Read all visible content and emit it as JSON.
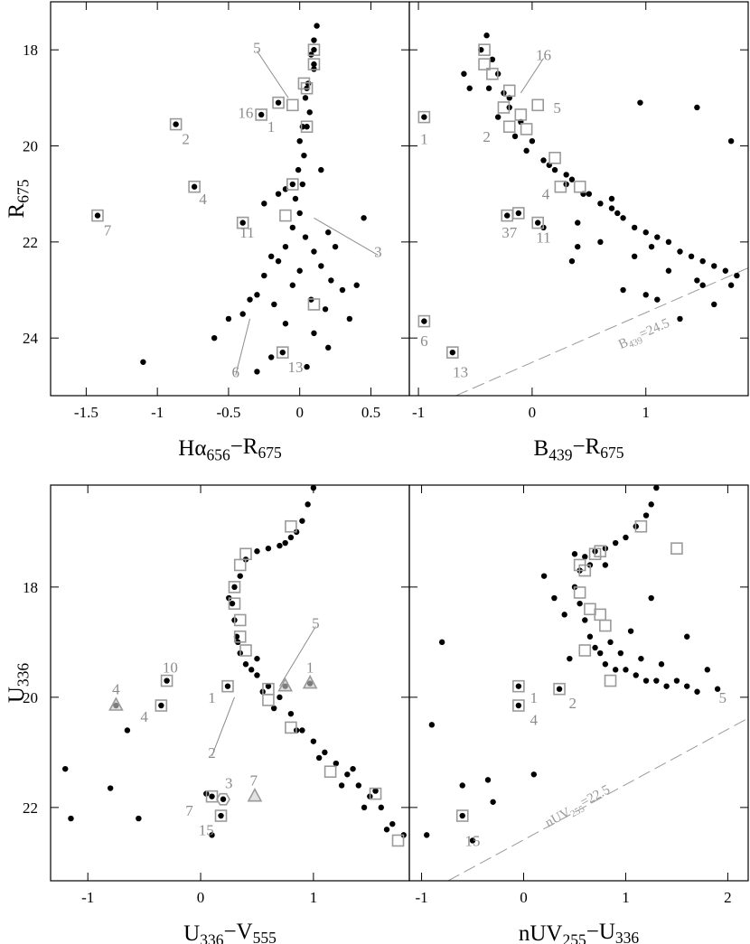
{
  "chart_data": [
    {
      "type": "scatter",
      "xlabel": [
        {
          "t": "Hα"
        },
        {
          "t": "656",
          "sub": true
        },
        {
          "t": "−R"
        },
        {
          "t": "675",
          "sub": true
        }
      ],
      "ylabel": [
        {
          "t": "R"
        },
        {
          "t": "675",
          "sub": true
        }
      ],
      "xlim": [
        -1.75,
        0.77
      ],
      "ylim": [
        17.0,
        25.2
      ],
      "y_inverted": true,
      "xticks": [
        -1.5,
        -1,
        -0.5,
        0,
        0.5
      ],
      "yticks": [
        18,
        20,
        22,
        24
      ],
      "series": [
        {
          "marker": "dot",
          "color": "#000000",
          "x": [
            0.12,
            0.1,
            0.08,
            0.1,
            0.06,
            0.04,
            0.07,
            0.02,
            0.0,
            0.03,
            -0.01,
            0.02,
            -0.03,
            0.0,
            -0.05,
            0.04,
            -0.1,
            0.1,
            -0.15,
            0.15,
            0.0,
            -0.25,
            0.22,
            -0.05,
            0.3,
            -0.3,
            0.08,
            -0.18,
            0.18,
            -0.4,
            0.35,
            -0.1,
            0.1,
            -0.35,
            0.4,
            -0.5,
            0.45,
            -0.15,
            0.2,
            -0.2,
            0.25,
            -0.6,
            -0.2,
            0.05,
            -1.1,
            -0.3,
            0.2,
            -0.25,
            0.15,
            -0.1,
            -0.27,
            -0.87,
            -0.74,
            -1.42,
            -0.4,
            -0.12,
            -0.15,
            0.1,
            0.1,
            0.05,
            0.05,
            -0.05
          ],
          "values": [
            17.5,
            17.8,
            18.1,
            18.4,
            18.7,
            19.0,
            19.3,
            19.6,
            19.9,
            20.2,
            20.5,
            20.8,
            21.1,
            21.4,
            21.7,
            21.9,
            22.1,
            22.2,
            22.4,
            22.5,
            22.6,
            22.7,
            22.8,
            22.9,
            23.0,
            23.1,
            23.2,
            23.3,
            23.4,
            23.5,
            23.6,
            23.7,
            23.9,
            23.2,
            22.9,
            23.6,
            21.5,
            21.0,
            21.8,
            22.3,
            22.1,
            24.0,
            24.4,
            24.6,
            24.5,
            24.7,
            24.2,
            21.2,
            20.5,
            20.9,
            19.35,
            19.55,
            20.85,
            21.45,
            21.6,
            24.3,
            19.1,
            18.0,
            18.3,
            18.8,
            19.6,
            20.8
          ]
        },
        {
          "marker": "square",
          "color": "#9a9a9a",
          "x": [
            -0.27,
            -0.87,
            -0.74,
            -1.42,
            -0.4,
            -0.12,
            -0.15,
            0.1,
            0.1,
            0.05,
            0.05,
            -0.05,
            -0.05,
            0.1,
            -0.1,
            0.03
          ],
          "values": [
            19.35,
            19.55,
            20.85,
            21.45,
            21.6,
            24.3,
            19.1,
            18.0,
            18.3,
            18.8,
            19.6,
            19.15,
            20.8,
            23.3,
            21.45,
            18.7
          ]
        }
      ],
      "annotations": [
        {
          "text": "5",
          "x": -0.3,
          "y": 17.95,
          "to": [
            -0.08,
            19.0
          ]
        },
        {
          "text": "16",
          "x": -0.38,
          "y": 19.3
        },
        {
          "text": "1",
          "x": -0.2,
          "y": 19.6
        },
        {
          "text": "2",
          "x": -0.8,
          "y": 19.85
        },
        {
          "text": "4",
          "x": -0.68,
          "y": 21.1
        },
        {
          "text": "7",
          "x": -1.35,
          "y": 21.75
        },
        {
          "text": "11",
          "x": -0.37,
          "y": 21.8
        },
        {
          "text": "3",
          "x": 0.55,
          "y": 22.2,
          "to": [
            0.1,
            21.5
          ]
        },
        {
          "text": "6",
          "x": -0.45,
          "y": 24.7,
          "to": [
            -0.35,
            23.6
          ]
        },
        {
          "text": "13",
          "x": -0.03,
          "y": 24.6
        }
      ]
    },
    {
      "type": "scatter",
      "xlabel": [
        {
          "t": "B"
        },
        {
          "t": "439",
          "sub": true
        },
        {
          "t": "−R"
        },
        {
          "t": "675",
          "sub": true
        }
      ],
      "xlim": [
        -1.08,
        1.9
      ],
      "ylim": [
        17.0,
        25.2
      ],
      "y_inverted": true,
      "xticks": [
        -1,
        0,
        1
      ],
      "yticks": [
        18,
        20,
        22,
        24
      ],
      "series": [
        {
          "marker": "dot",
          "color": "#000000",
          "x": [
            -0.4,
            -0.45,
            -0.35,
            -0.3,
            -0.38,
            -0.25,
            -0.2,
            -0.3,
            -0.1,
            -0.15,
            0.0,
            -0.05,
            0.1,
            0.15,
            0.2,
            0.3,
            0.35,
            0.45,
            0.5,
            0.6,
            0.7,
            0.8,
            0.75,
            0.9,
            1.0,
            1.1,
            1.05,
            1.2,
            1.3,
            1.4,
            1.5,
            1.6,
            1.7,
            1.8,
            0.9,
            1.2,
            1.5,
            0.6,
            1.0,
            0.4,
            -0.6,
            -0.55,
            -0.2,
            0.3,
            0.7,
            1.45,
            1.6,
            0.1,
            0.35,
            -0.95,
            -0.95,
            -0.7,
            -0.22,
            -0.12,
            0.05,
            0.4,
            0.8,
            1.1,
            1.3,
            1.75,
            0.95,
            1.45,
            1.75
          ],
          "values": [
            17.7,
            18.0,
            18.2,
            18.5,
            18.8,
            18.9,
            19.2,
            19.4,
            19.5,
            19.8,
            19.9,
            20.1,
            20.3,
            20.4,
            20.5,
            20.8,
            20.7,
            21.0,
            21.0,
            21.2,
            21.3,
            21.5,
            21.4,
            21.7,
            21.8,
            21.9,
            22.1,
            22.0,
            22.2,
            22.3,
            22.4,
            22.5,
            22.6,
            22.7,
            22.3,
            22.6,
            22.9,
            22.0,
            23.1,
            21.6,
            18.5,
            18.8,
            19.0,
            20.6,
            21.1,
            22.8,
            23.3,
            21.7,
            22.4,
            19.4,
            23.65,
            24.3,
            21.45,
            21.4,
            21.6,
            22.1,
            23.0,
            23.2,
            23.6,
            22.9,
            19.1,
            19.2,
            19.9
          ]
        },
        {
          "marker": "square",
          "color": "#9a9a9a",
          "x": [
            -0.42,
            -0.42,
            -0.35,
            -0.2,
            -0.25,
            -0.1,
            0.05,
            -0.05,
            -0.2,
            0.2,
            0.25,
            0.42,
            -0.22,
            -0.12,
            0.05,
            -0.95,
            -0.95,
            -0.7
          ],
          "values": [
            18.0,
            18.3,
            18.5,
            18.85,
            19.2,
            19.35,
            19.15,
            19.65,
            19.6,
            20.25,
            20.85,
            20.85,
            21.45,
            21.4,
            21.6,
            19.4,
            23.65,
            24.3
          ]
        }
      ],
      "annotations": [
        {
          "text": "16",
          "x": 0.1,
          "y": 18.1,
          "to": [
            -0.1,
            18.9
          ]
        },
        {
          "text": "5",
          "x": 0.22,
          "y": 19.2
        },
        {
          "text": "2",
          "x": -0.4,
          "y": 19.8
        },
        {
          "text": "1",
          "x": -0.95,
          "y": 19.85
        },
        {
          "text": "4",
          "x": 0.12,
          "y": 21.0
        },
        {
          "text": "37",
          "x": -0.2,
          "y": 21.8
        },
        {
          "text": "11",
          "x": 0.1,
          "y": 21.9
        },
        {
          "text": "6",
          "x": -0.95,
          "y": 24.05
        },
        {
          "text": "13",
          "x": -0.63,
          "y": 24.7
        }
      ],
      "limit_line": {
        "x": [
          -0.67,
          1.9
        ],
        "y": [
          25.2,
          22.54
        ],
        "label": [
          {
            "t": "B"
          },
          {
            "t": "439",
            "sub": true
          },
          {
            "t": "=24.5"
          }
        ],
        "label_x": 1.0,
        "label_y": 24.0
      }
    },
    {
      "type": "scatter",
      "xlabel": [
        {
          "t": "U"
        },
        {
          "t": "336",
          "sub": true
        },
        {
          "t": "−V"
        },
        {
          "t": "555",
          "sub": true
        }
      ],
      "ylabel": [
        {
          "t": "U"
        },
        {
          "t": "336",
          "sub": true
        }
      ],
      "xlim": [
        -1.33,
        1.85
      ],
      "ylim": [
        16.15,
        23.33
      ],
      "y_inverted": true,
      "xticks": [
        -1,
        0,
        1
      ],
      "yticks": [
        18,
        20,
        22
      ],
      "series": [
        {
          "marker": "dot",
          "color": "#000000",
          "x": [
            1.0,
            0.95,
            0.9,
            0.85,
            0.8,
            0.75,
            0.7,
            0.6,
            0.5,
            0.4,
            0.35,
            0.3,
            0.28,
            0.3,
            0.32,
            0.35,
            0.4,
            0.5,
            0.6,
            0.7,
            0.8,
            0.9,
            1.0,
            1.1,
            1.2,
            1.3,
            1.4,
            1.5,
            1.6,
            1.7,
            1.8,
            0.45,
            0.55,
            0.65,
            0.85,
            1.05,
            1.25,
            1.45,
            1.65,
            0.25,
            0.33,
            0.5,
            1.35,
            1.55,
            -0.75,
            -1.2,
            -1.15,
            -0.55,
            -0.8,
            -0.65,
            0.05,
            0.1,
            0.2,
            0.24,
            -0.3,
            -0.35,
            0.1,
            0.18,
            0.97,
            0.75
          ],
          "values": [
            16.2,
            16.5,
            16.8,
            17.0,
            17.1,
            17.2,
            17.25,
            17.3,
            17.35,
            17.5,
            17.8,
            18.0,
            18.3,
            18.6,
            18.9,
            19.2,
            19.4,
            19.6,
            19.8,
            20.0,
            20.3,
            20.6,
            20.8,
            21.0,
            21.2,
            21.4,
            21.6,
            21.8,
            22.0,
            22.3,
            22.5,
            19.5,
            19.9,
            20.2,
            20.6,
            21.1,
            21.6,
            22.0,
            22.4,
            18.2,
            19.0,
            19.3,
            21.3,
            21.7,
            20.15,
            21.3,
            22.2,
            22.2,
            21.65,
            20.6,
            21.75,
            22.5,
            21.85,
            19.8,
            19.7,
            20.15,
            21.8,
            22.15,
            19.75,
            19.8
          ]
        },
        {
          "marker": "square",
          "color": "#9a9a9a",
          "x": [
            0.8,
            0.4,
            0.35,
            0.3,
            0.3,
            0.35,
            0.35,
            0.4,
            0.6,
            0.6,
            0.8,
            1.15,
            1.55,
            1.75,
            0.24,
            -0.3,
            -0.35,
            0.1,
            0.18
          ],
          "values": [
            16.9,
            17.4,
            17.6,
            18.0,
            18.3,
            18.6,
            18.9,
            19.15,
            19.85,
            20.05,
            20.55,
            21.35,
            21.75,
            22.6,
            19.8,
            19.7,
            20.15,
            21.8,
            22.15
          ]
        },
        {
          "marker": "triangle",
          "color": "#9a9a9a",
          "x": [
            -0.75,
            0.97,
            0.48,
            0.75
          ],
          "values": [
            20.15,
            19.75,
            21.8,
            19.8
          ]
        },
        {
          "marker": "hexagon",
          "color": "#9a9a9a",
          "x": [
            0.2
          ],
          "values": [
            21.85
          ]
        }
      ],
      "annotations": [
        {
          "text": "5",
          "x": 1.02,
          "y": 18.65,
          "to": [
            0.7,
            19.8
          ]
        },
        {
          "text": "10",
          "x": -0.27,
          "y": 19.45
        },
        {
          "text": "1",
          "x": 0.1,
          "y": 20.0
        },
        {
          "text": "4",
          "x": -0.75,
          "y": 19.85
        },
        {
          "text": "4",
          "x": -0.5,
          "y": 20.35
        },
        {
          "text": "1",
          "x": 0.97,
          "y": 19.45
        },
        {
          "text": "2",
          "x": 0.1,
          "y": 21.0,
          "to": [
            0.3,
            20.0
          ]
        },
        {
          "text": "3",
          "x": 0.25,
          "y": 21.55
        },
        {
          "text": "7",
          "x": 0.47,
          "y": 21.5
        },
        {
          "text": "7",
          "x": -0.1,
          "y": 22.05
        },
        {
          "text": "15",
          "x": 0.05,
          "y": 22.4
        }
      ]
    },
    {
      "type": "scatter",
      "xlabel": [
        {
          "t": "nUV"
        },
        {
          "t": "255",
          "sub": true
        },
        {
          "t": "−U"
        },
        {
          "t": "336",
          "sub": true
        }
      ],
      "xlim": [
        -1.12,
        2.2
      ],
      "ylim": [
        16.15,
        23.33
      ],
      "y_inverted": true,
      "xticks": [
        -1,
        0,
        1,
        2
      ],
      "yticks": [
        18,
        20,
        22
      ],
      "series": [
        {
          "marker": "dot",
          "color": "#000000",
          "x": [
            1.3,
            1.25,
            1.2,
            1.1,
            1.0,
            0.9,
            0.8,
            0.7,
            0.6,
            0.55,
            0.5,
            0.55,
            0.6,
            0.65,
            0.7,
            0.75,
            0.8,
            0.9,
            1.0,
            1.1,
            1.2,
            1.3,
            1.4,
            1.5,
            1.6,
            1.7,
            0.4,
            0.45,
            0.85,
            0.95,
            1.15,
            1.35,
            0.65,
            0.5,
            1.05,
            1.8,
            1.9,
            0.3,
            0.2,
            -0.8,
            -0.9,
            -0.6,
            -0.3,
            -0.05,
            -0.05,
            0.35,
            -0.6,
            -0.95,
            -0.5,
            -0.35,
            0.1,
            1.6,
            1.25,
            0.8
          ],
          "values": [
            16.2,
            16.5,
            16.7,
            16.9,
            17.1,
            17.2,
            17.3,
            17.35,
            17.45,
            17.7,
            18.0,
            18.3,
            18.6,
            18.9,
            19.1,
            19.2,
            19.4,
            19.5,
            19.5,
            19.6,
            19.7,
            19.7,
            19.8,
            19.7,
            19.8,
            19.9,
            18.5,
            19.3,
            19.0,
            19.2,
            19.3,
            19.4,
            17.6,
            17.4,
            18.8,
            19.5,
            19.85,
            18.2,
            17.8,
            19.0,
            20.5,
            21.6,
            21.9,
            19.8,
            20.15,
            19.85,
            22.15,
            22.5,
            22.6,
            21.5,
            21.4,
            18.9,
            18.2,
            17.6
          ]
        },
        {
          "marker": "square",
          "color": "#9a9a9a",
          "x": [
            1.15,
            0.7,
            0.75,
            0.55,
            0.6,
            0.55,
            0.65,
            0.75,
            0.8,
            0.6,
            0.85,
            -0.05,
            -0.05,
            0.35,
            -0.6,
            1.5
          ],
          "values": [
            16.9,
            17.4,
            17.35,
            17.6,
            17.7,
            18.1,
            18.4,
            18.5,
            18.7,
            19.15,
            19.7,
            19.8,
            20.15,
            19.85,
            22.15,
            17.3
          ]
        }
      ],
      "annotations": [
        {
          "text": "1",
          "x": 0.1,
          "y": 20.0
        },
        {
          "text": "4",
          "x": 0.1,
          "y": 20.4
        },
        {
          "text": "2",
          "x": 0.48,
          "y": 20.1
        },
        {
          "text": "5",
          "x": 1.95,
          "y": 20.0
        },
        {
          "text": "15",
          "x": -0.5,
          "y": 22.6
        }
      ],
      "limit_line": {
        "x": [
          -0.74,
          2.2
        ],
        "y": [
          23.33,
          20.38
        ],
        "label": [
          {
            "t": "nUV"
          },
          {
            "t": "255",
            "sub": true
          },
          {
            "t": "=22.5"
          }
        ],
        "label_x": 0.55,
        "label_y": 22.05
      }
    }
  ]
}
